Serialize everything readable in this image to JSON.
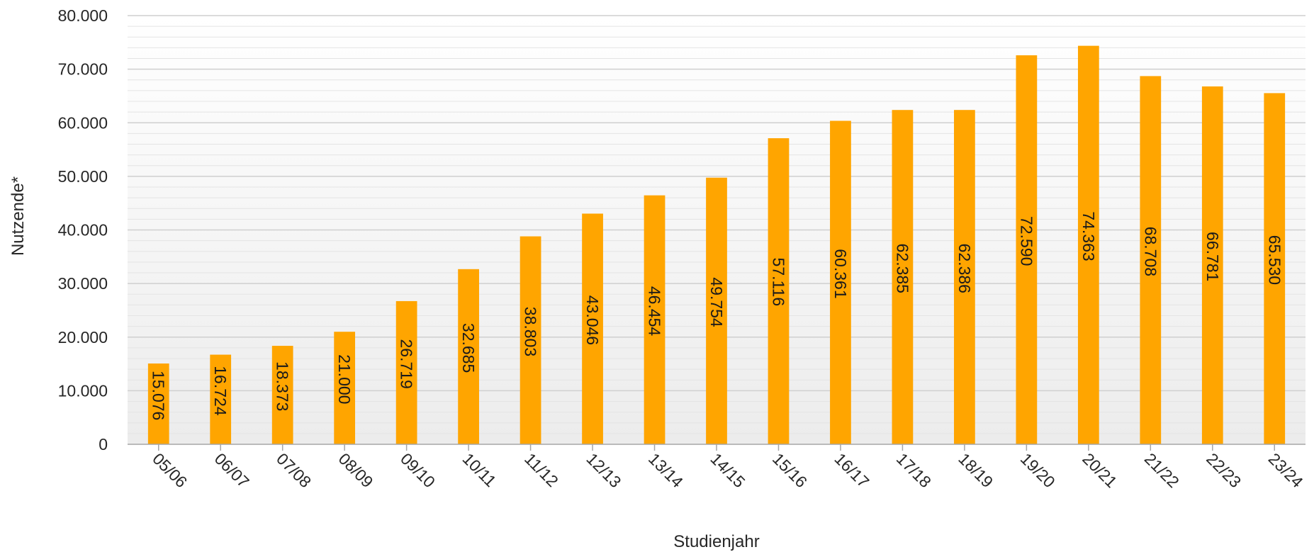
{
  "chart_data": {
    "type": "bar",
    "title": "",
    "xlabel": "Studienjahr",
    "ylabel": "Nutzende*",
    "categories": [
      "05/06",
      "06/07",
      "07/08",
      "08/09",
      "09/10",
      "10/11",
      "11/12",
      "12/13",
      "13/14",
      "14/15",
      "15/16",
      "16/17",
      "17/18",
      "18/19",
      "19/20",
      "20/21",
      "21/22",
      "22/23",
      "23/24"
    ],
    "values": [
      15076,
      16724,
      18373,
      21000,
      26719,
      32685,
      38803,
      43046,
      46454,
      49754,
      57116,
      60361,
      62385,
      62386,
      72590,
      74363,
      68708,
      66781,
      65530
    ],
    "value_labels": [
      "15.076",
      "16.724",
      "18.373",
      "21.000",
      "26.719",
      "32.685",
      "38.803",
      "43.046",
      "46.454",
      "49.754",
      "57.116",
      "60.361",
      "62.385",
      "62.386",
      "72.590",
      "74.363",
      "68.708",
      "66.781",
      "65.530"
    ],
    "ylim": [
      0,
      80000
    ],
    "y_ticks": [
      0,
      10000,
      20000,
      30000,
      40000,
      50000,
      60000,
      70000,
      80000
    ],
    "y_tick_labels": [
      "0",
      "10.000",
      "20.000",
      "30.000",
      "40.000",
      "50.000",
      "60.000",
      "70.000",
      "80.000"
    ],
    "grid": true,
    "legend": "none",
    "bar_color": "#FFA500"
  }
}
